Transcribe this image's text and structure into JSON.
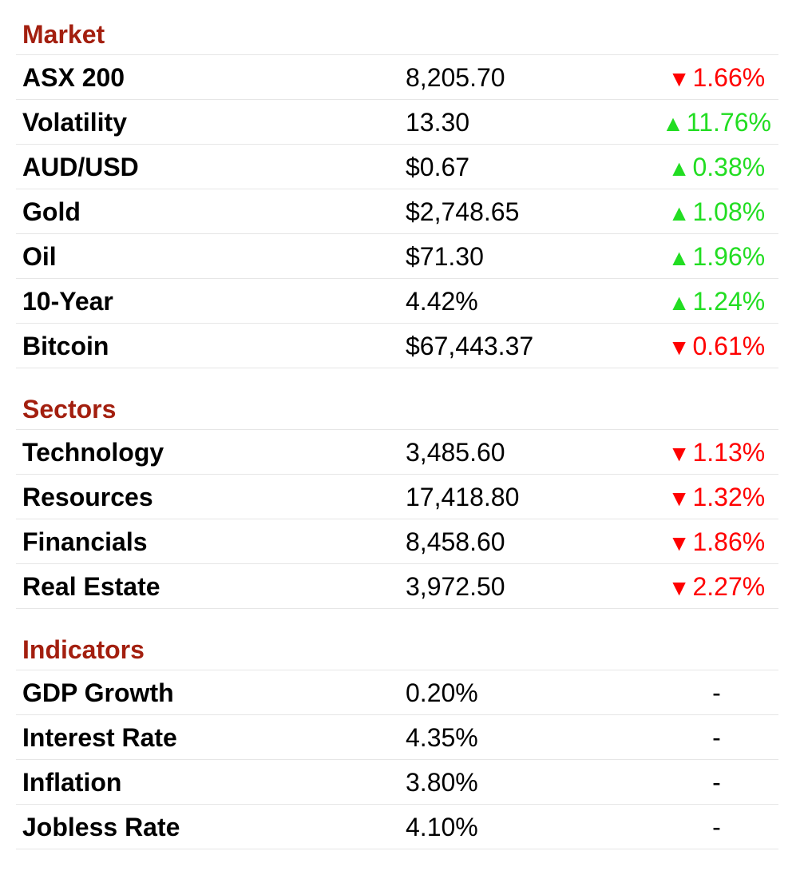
{
  "colors": {
    "section_title": "#a31f0f",
    "down": "#ff0000",
    "up": "#22dd22",
    "rule": "#e6e6e6"
  },
  "sections": [
    {
      "title": "Market",
      "rows": [
        {
          "name": "ASX 200",
          "value": "8,205.70",
          "direction": "down",
          "arrow": "▼",
          "change": "1.66%"
        },
        {
          "name": "Volatility",
          "value": "13.30",
          "direction": "up",
          "arrow": "▲",
          "change": "11.76%"
        },
        {
          "name": "AUD/USD",
          "value": "$0.67",
          "direction": "up",
          "arrow": "▲",
          "change": "0.38%"
        },
        {
          "name": "Gold",
          "value": "$2,748.65",
          "direction": "up",
          "arrow": "▲",
          "change": "1.08%"
        },
        {
          "name": "Oil",
          "value": "$71.30",
          "direction": "up",
          "arrow": "▲",
          "change": "1.96%"
        },
        {
          "name": "10-Year",
          "value": "4.42%",
          "direction": "up",
          "arrow": "▲",
          "change": "1.24%"
        },
        {
          "name": "Bitcoin",
          "value": "$67,443.37",
          "direction": "down",
          "arrow": "▼",
          "change": "0.61%"
        }
      ]
    },
    {
      "title": "Sectors",
      "rows": [
        {
          "name": "Technology",
          "value": "3,485.60",
          "direction": "down",
          "arrow": "▼",
          "change": "1.13%"
        },
        {
          "name": "Resources",
          "value": "17,418.80",
          "direction": "down",
          "arrow": "▼",
          "change": "1.32%"
        },
        {
          "name": "Financials",
          "value": "8,458.60",
          "direction": "down",
          "arrow": "▼",
          "change": "1.86%"
        },
        {
          "name": "Real Estate",
          "value": "3,972.50",
          "direction": "down",
          "arrow": "▼",
          "change": "2.27%"
        }
      ]
    },
    {
      "title": "Indicators",
      "rows": [
        {
          "name": "GDP Growth",
          "value": "0.20%",
          "direction": "neutral",
          "arrow": "",
          "change": "-"
        },
        {
          "name": "Interest Rate",
          "value": "4.35%",
          "direction": "neutral",
          "arrow": "",
          "change": "-"
        },
        {
          "name": "Inflation",
          "value": "3.80%",
          "direction": "neutral",
          "arrow": "",
          "change": "-"
        },
        {
          "name": "Jobless Rate",
          "value": "4.10%",
          "direction": "neutral",
          "arrow": "",
          "change": "-"
        }
      ]
    }
  ]
}
